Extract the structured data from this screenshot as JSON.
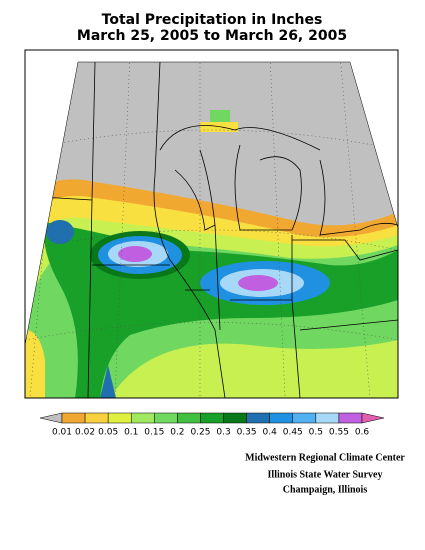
{
  "title": [
    "Total Precipitation in Inches",
    "March 25, 2005 to March 26, 2005"
  ],
  "legend": {
    "levels": [
      0.01,
      0.02,
      0.05,
      0.1,
      0.15,
      0.2,
      0.25,
      0.3,
      0.35,
      0.4,
      0.45,
      0.5,
      0.55,
      0.6
    ],
    "colors": [
      "#c0c0c0",
      "#f0a830",
      "#f8d040",
      "#e0f040",
      "#a0e860",
      "#70d860",
      "#40c040",
      "#18a028",
      "#087818",
      "#2070b0",
      "#2090e0",
      "#50b0f0",
      "#a8d8f8",
      "#c060e0",
      "#e060b0"
    ]
  },
  "credits": [
    "Midwestern Regional Climate Center",
    "Illinois State Water Survey",
    "Champaign, Illinois"
  ]
}
